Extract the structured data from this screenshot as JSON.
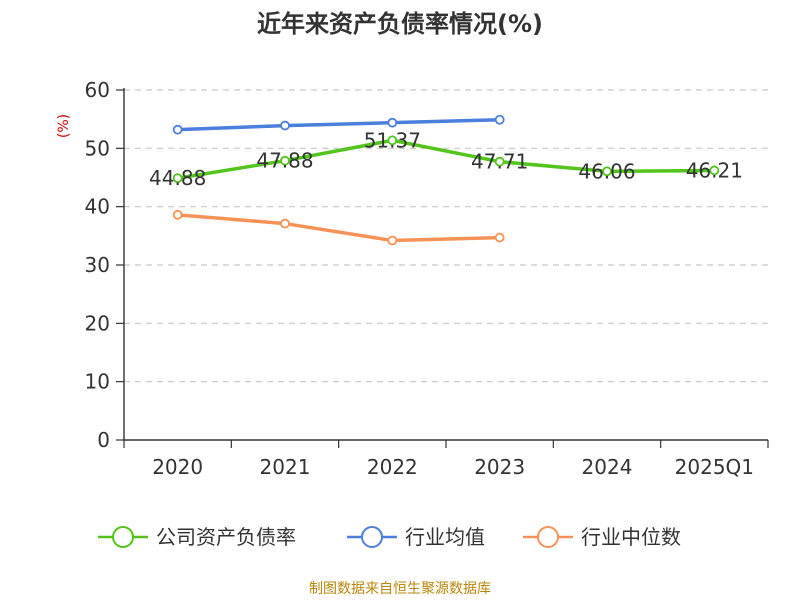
{
  "chart_data": {
    "type": "line",
    "title": "近年来资产负债率情况(%)",
    "ylabel": "(%)",
    "ylim": [
      0,
      60
    ],
    "yticks": [
      0,
      10,
      20,
      30,
      40,
      50,
      60
    ],
    "categories": [
      "2020",
      "2021",
      "2022",
      "2023",
      "2024",
      "2025Q1"
    ],
    "grid": true,
    "legend_position": "bottom",
    "series": [
      {
        "name": "公司资产负债率",
        "color": "#52c41a",
        "values": [
          44.88,
          47.88,
          51.37,
          47.71,
          46.06,
          46.21
        ],
        "labels": [
          "44.88",
          "47.88",
          "51.37",
          "47.71",
          "46.06",
          "46.21"
        ]
      },
      {
        "name": "行业均值",
        "color": "#4a7fdc",
        "values": [
          53.2,
          53.9,
          54.4,
          54.9,
          null,
          null
        ]
      },
      {
        "name": "行业中位数",
        "color": "#f79256",
        "values": [
          38.6,
          37.1,
          34.2,
          34.7,
          null,
          null
        ]
      }
    ]
  },
  "source": "制图数据来自恒生聚源数据库"
}
